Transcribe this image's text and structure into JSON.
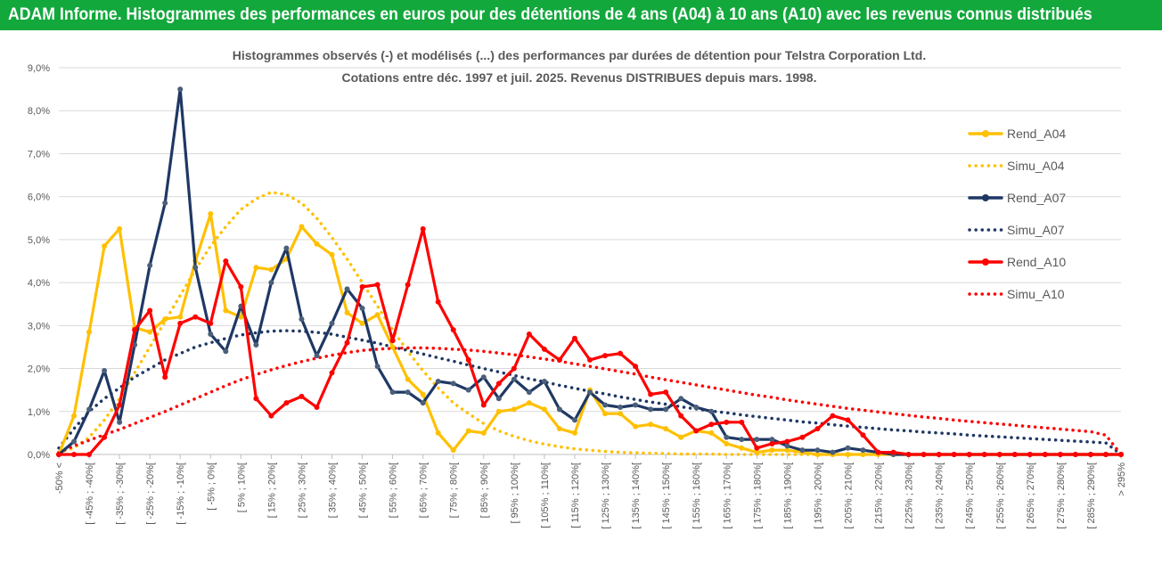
{
  "header": {
    "title": "ADAM Informe. Histogrammes des performances en euros pour des détentions de 4 ans (A04) à 10 ans (A10) avec les revenus connus distribués"
  },
  "colors": {
    "header_bg": "#12a83c",
    "A04": "#ffc000",
    "A07": "#1f3864",
    "A10": "#ff0000",
    "grid": "#d9d9d9",
    "text": "#595959"
  },
  "chart_data": {
    "type": "line",
    "title": "Histogrammes observés (-) et modélisés (...) des performances par durées de détention pour Telstra Corporation Ltd.",
    "subtitle": "Cotations entre déc. 1997 et juil. 2025. Revenus DISTRIBUES depuis mars. 1998.",
    "ylim": [
      0,
      9
    ],
    "yticks": [
      "0,0%",
      "1,0%",
      "2,0%",
      "3,0%",
      "4,0%",
      "5,0%",
      "6,0%",
      "7,0%",
      "8,0%",
      "9,0%"
    ],
    "legend_position": "right",
    "categories": [
      "-50% <",
      "]-50% ; -45%]",
      "[ -45% ; -40%[",
      "]-40% ; -35%]",
      "[ -35% ; -30%[",
      "]-30% ; -25%]",
      "[ -25% ; -20%[",
      "]-20% ; -15%]",
      "[ -15% ; -10%[",
      "]-10% ; -5%]",
      "[ -5% ; 0%[",
      "]0% ; 5%]",
      "[ 5% ; 10%[",
      "]10% ; 15%]",
      "[ 15% ; 20%[",
      "]20% ; 25%]",
      "[ 25% ; 30%[",
      "]30% ; 35%]",
      "[ 35% ; 40%[",
      "]40% ; 45%]",
      "[ 45% ; 50%[",
      "]50% ; 55%]",
      "[ 55% ; 60%[",
      "]60% ; 65%]",
      "[ 65% ; 70%[",
      "]70% ; 75%]",
      "[ 75% ; 80%[",
      "]80% ; 85%]",
      "[ 85% ; 90%[",
      "]90% ; 95%]",
      "[ 95% ; 100%[",
      "]100% ; 105%]",
      "[ 105% ; 110%[",
      "]110% ; 115%]",
      "[ 115% ; 120%[",
      "]120% ; 125%]",
      "[ 125% ; 130%[",
      "]130% ; 135%]",
      "[ 135% ; 140%[",
      "]140% ; 145%]",
      "[ 145% ; 150%[",
      "]150% ; 155%]",
      "[ 155% ; 160%[",
      "]160% ; 165%]",
      "[ 165% ; 170%[",
      "]170% ; 175%]",
      "[ 175% ; 180%[",
      "]180% ; 185%]",
      "[ 185% ; 190%[",
      "]190% ; 195%]",
      "[ 195% ; 200%[",
      "]200% ; 205%]",
      "[ 205% ; 210%[",
      "]210% ; 215%]",
      "[ 215% ; 220%[",
      "]220% ; 225%]",
      "[ 225% ; 230%[",
      "]230% ; 235%]",
      "[ 235% ; 240%[",
      "]240% ; 245%]",
      "[ 245% ; 250%[",
      "]250% ; 255%]",
      "[ 255% ; 260%[",
      "]260% ; 265%]",
      "[ 265% ; 270%[",
      "]270% ; 275%]",
      "[ 275% ; 280%[",
      "]280% ; 285%]",
      "[ 285% ; 290%[",
      "]290% ; 295%]",
      "> 295%"
    ],
    "series": [
      {
        "name": "Rend_A04",
        "style": "solid",
        "color": "#ffc000",
        "values": [
          0,
          0.9,
          2.85,
          4.85,
          5.25,
          2.95,
          2.85,
          3.15,
          3.2,
          4.5,
          5.6,
          3.35,
          3.2,
          4.35,
          4.3,
          4.55,
          5.3,
          4.9,
          4.65,
          3.3,
          3.05,
          3.25,
          2.5,
          1.75,
          1.4,
          0.5,
          0.1,
          0.55,
          0.5,
          1.0,
          1.05,
          1.2,
          1.05,
          0.6,
          0.5,
          1.5,
          0.95,
          0.95,
          0.65,
          0.7,
          0.6,
          0.4,
          0.55,
          0.5,
          0.25,
          0.15,
          0.05,
          0.1,
          0.1,
          0.05,
          0,
          0,
          0,
          0,
          0,
          0,
          0,
          0,
          0,
          0,
          0,
          0,
          0,
          0,
          0,
          0,
          0,
          0,
          0,
          0,
          0
        ]
      },
      {
        "name": "Simu_A04",
        "style": "dotted",
        "color": "#ffc000",
        "values": [
          0.05,
          0.15,
          0.4,
          0.8,
          1.3,
          1.9,
          2.5,
          3.1,
          3.7,
          4.3,
          4.85,
          5.3,
          5.7,
          5.95,
          6.1,
          6.05,
          5.85,
          5.5,
          5.05,
          4.55,
          4.0,
          3.45,
          2.9,
          2.4,
          1.95,
          1.55,
          1.2,
          0.95,
          0.72,
          0.55,
          0.42,
          0.32,
          0.24,
          0.18,
          0.13,
          0.1,
          0.07,
          0.05,
          0.04,
          0.03,
          0.02,
          0.01,
          0.01,
          0.01,
          0,
          0,
          0,
          0,
          0,
          0,
          0,
          0,
          0,
          0,
          0,
          0,
          0,
          0,
          0,
          0,
          0,
          0,
          0,
          0,
          0,
          0,
          0,
          0,
          0,
          0,
          0
        ]
      },
      {
        "name": "Rend_A07",
        "style": "solid",
        "color": "#1f3864",
        "values": [
          0,
          0.3,
          1.05,
          1.95,
          0.75,
          2.55,
          4.4,
          5.85,
          8.5,
          4.35,
          2.8,
          2.4,
          3.45,
          2.55,
          4.0,
          4.8,
          3.15,
          2.3,
          3.05,
          3.85,
          3.4,
          2.05,
          1.45,
          1.45,
          1.2,
          1.7,
          1.65,
          1.5,
          1.8,
          1.3,
          1.75,
          1.45,
          1.7,
          1.05,
          0.8,
          1.45,
          1.15,
          1.1,
          1.15,
          1.05,
          1.05,
          1.3,
          1.1,
          1.0,
          0.4,
          0.35,
          0.35,
          0.35,
          0.2,
          0.1,
          0.1,
          0.05,
          0.15,
          0.1,
          0.05,
          0,
          0,
          0,
          0,
          0,
          0,
          0,
          0,
          0,
          0,
          0,
          0,
          0,
          0,
          0,
          0
        ]
      },
      {
        "name": "Simu_A07",
        "style": "dotted",
        "color": "#1f3864",
        "values": [
          0.15,
          0.6,
          1.0,
          1.3,
          1.55,
          1.8,
          2.0,
          2.2,
          2.35,
          2.5,
          2.6,
          2.7,
          2.78,
          2.83,
          2.87,
          2.88,
          2.87,
          2.84,
          2.8,
          2.73,
          2.66,
          2.59,
          2.5,
          2.42,
          2.34,
          2.25,
          2.17,
          2.08,
          2.0,
          1.92,
          1.84,
          1.76,
          1.69,
          1.61,
          1.54,
          1.47,
          1.41,
          1.34,
          1.28,
          1.22,
          1.17,
          1.11,
          1.06,
          1.01,
          0.97,
          0.92,
          0.88,
          0.84,
          0.8,
          0.76,
          0.73,
          0.69,
          0.66,
          0.63,
          0.6,
          0.57,
          0.55,
          0.52,
          0.5,
          0.48,
          0.45,
          0.43,
          0.41,
          0.39,
          0.37,
          0.35,
          0.33,
          0.31,
          0.29,
          0.27,
          0
        ]
      },
      {
        "name": "Rend_A10",
        "style": "solid",
        "color": "#ff0000",
        "values": [
          0,
          0,
          0,
          0.4,
          1.15,
          2.9,
          3.35,
          1.8,
          3.05,
          3.2,
          3.05,
          4.5,
          3.9,
          1.3,
          0.9,
          1.2,
          1.35,
          1.1,
          1.9,
          2.6,
          3.9,
          3.95,
          2.65,
          3.95,
          5.25,
          3.55,
          2.9,
          2.2,
          1.15,
          1.65,
          2.0,
          2.8,
          2.45,
          2.2,
          2.7,
          2.2,
          2.3,
          2.35,
          2.05,
          1.4,
          1.45,
          0.9,
          0.55,
          0.7,
          0.75,
          0.75,
          0.15,
          0.25,
          0.3,
          0.4,
          0.6,
          0.9,
          0.8,
          0.45,
          0.05,
          0.05,
          0,
          0,
          0,
          0,
          0,
          0,
          0,
          0,
          0,
          0,
          0,
          0,
          0,
          0,
          0
        ]
      },
      {
        "name": "Simu_A10",
        "style": "dotted",
        "color": "#ff0000",
        "values": [
          0.05,
          0.2,
          0.33,
          0.46,
          0.58,
          0.72,
          0.86,
          1.0,
          1.15,
          1.3,
          1.45,
          1.6,
          1.74,
          1.86,
          1.97,
          2.07,
          2.16,
          2.24,
          2.31,
          2.37,
          2.42,
          2.45,
          2.47,
          2.48,
          2.48,
          2.47,
          2.45,
          2.43,
          2.4,
          2.36,
          2.32,
          2.27,
          2.22,
          2.17,
          2.11,
          2.05,
          1.99,
          1.93,
          1.87,
          1.8,
          1.74,
          1.68,
          1.62,
          1.56,
          1.5,
          1.44,
          1.38,
          1.33,
          1.27,
          1.22,
          1.17,
          1.12,
          1.07,
          1.03,
          0.99,
          0.95,
          0.91,
          0.87,
          0.84,
          0.8,
          0.77,
          0.74,
          0.71,
          0.68,
          0.65,
          0.62,
          0.59,
          0.56,
          0.53,
          0.45,
          0
        ]
      }
    ]
  }
}
